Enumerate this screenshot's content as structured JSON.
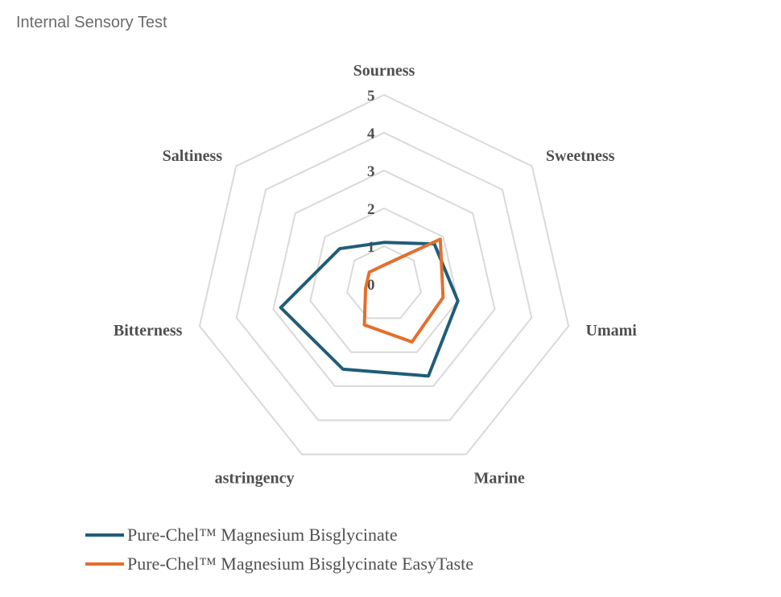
{
  "chart_data": {
    "type": "radar",
    "title": "Internal Sensory Test",
    "axes": [
      "Sourness",
      "Sweetness",
      "Umami",
      "Marine",
      "astringency",
      "Bitterness",
      "Saltiness"
    ],
    "ticks": [
      "0",
      "1",
      "2",
      "3",
      "4",
      "5"
    ],
    "rmin": 0,
    "rmax": 5,
    "grid": true,
    "legend_position": "bottom-left",
    "series": [
      {
        "name": "Pure-Chel™ Magnesium Bisglycinate",
        "color": "#1f5d78",
        "values": [
          1.1,
          1.7,
          2.0,
          2.7,
          2.5,
          2.8,
          1.5
        ]
      },
      {
        "name": "Pure-Chel™ Magnesium Bisglycinate EasyTaste",
        "color": "#e36f2c",
        "values": [
          0.5,
          1.9,
          1.6,
          1.7,
          1.2,
          0.5,
          0.5
        ]
      }
    ]
  }
}
